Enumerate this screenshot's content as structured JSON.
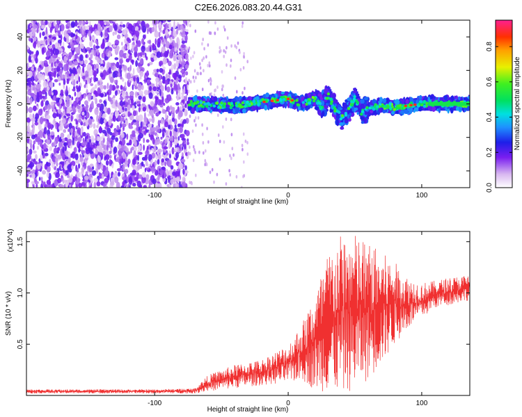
{
  "title": "C2E6.2026.083.20.44.G31",
  "chart_data": [
    {
      "type": "heatmap",
      "xlabel": "Height of straight line (km)",
      "ylabel": "Frequency (Hz)",
      "xlim": [
        -196,
        136
      ],
      "ylim": [
        -50,
        50
      ],
      "x_ticks": [
        -100,
        0,
        100
      ],
      "x_tick_labels": [
        "-100",
        "0",
        "100"
      ],
      "y_ticks": [
        -40,
        -20,
        0,
        20,
        40
      ],
      "y_tick_labels": [
        "-40",
        "-20",
        "0",
        "20",
        "40"
      ],
      "noise_region": {
        "x_from": -196,
        "x_to": -75,
        "note_level": 0.1
      },
      "signal_band": {
        "x_from": -75,
        "x_to": 136,
        "center_freq": [
          [
            -75,
            0
          ],
          [
            -40,
            -1
          ],
          [
            -20,
            1
          ],
          [
            0,
            3
          ],
          [
            10,
            0
          ],
          [
            20,
            3
          ],
          [
            25,
            -2
          ],
          [
            30,
            5
          ],
          [
            35,
            -3
          ],
          [
            40,
            -8
          ],
          [
            45,
            -4
          ],
          [
            50,
            4
          ],
          [
            55,
            -5
          ],
          [
            60,
            -3
          ],
          [
            70,
            -1
          ],
          [
            80,
            -2
          ],
          [
            90,
            -1
          ],
          [
            100,
            0
          ],
          [
            110,
            0
          ],
          [
            136,
            0
          ]
        ],
        "peak_amplitude": 0.9
      },
      "colorbar": {
        "label": "Normalized spectral amplitude",
        "range": [
          0,
          0.95
        ],
        "ticks": [
          0.0,
          0.2,
          0.4,
          0.6,
          0.8
        ],
        "tick_labels": [
          "0.0",
          "0.2",
          "0.4",
          "0.6",
          "0.8"
        ]
      }
    },
    {
      "type": "line",
      "xlabel": "Height of straight line (km)",
      "ylabel": "SNR (10 * v/v)",
      "y_multiplier": "(x10^4)",
      "xlim": [
        -196,
        136
      ],
      "ylim": [
        0,
        1.6
      ],
      "x_ticks": [
        -100,
        0,
        100
      ],
      "x_tick_labels": [
        "-100",
        "0",
        "100"
      ],
      "y_ticks": [
        0.5,
        1.0,
        1.5
      ],
      "y_tick_labels": [
        "0.5",
        "1.0",
        "1.5"
      ],
      "series": [
        {
          "color": "#f03030",
          "envelope_x": [
            -196,
            -100,
            -70,
            -60,
            -40,
            -20,
            0,
            10,
            20,
            30,
            40,
            50,
            60,
            70,
            80,
            90,
            100,
            110,
            120,
            136
          ],
          "envelope_low": [
            0.02,
            0.02,
            0.02,
            0.04,
            0.07,
            0.1,
            0.12,
            0.15,
            0.05,
            0.03,
            0.02,
            0.05,
            0.15,
            0.3,
            0.5,
            0.65,
            0.75,
            0.85,
            0.88,
            0.93
          ],
          "envelope_high": [
            0.06,
            0.06,
            0.07,
            0.2,
            0.3,
            0.35,
            0.5,
            0.7,
            1.0,
            1.4,
            1.58,
            1.58,
            1.5,
            1.4,
            1.3,
            1.15,
            1.1,
            1.12,
            1.15,
            1.18
          ]
        }
      ]
    }
  ]
}
